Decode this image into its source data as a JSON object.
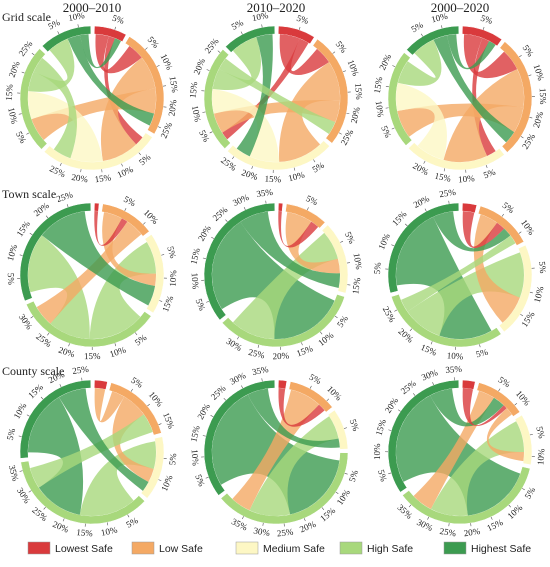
{
  "column_titles": [
    "2000–2010",
    "2010–2020",
    "2000–2020"
  ],
  "row_labels": [
    "Grid scale",
    "Town scale",
    "County scale"
  ],
  "categories": [
    "Lowest Safe",
    "Low Safe",
    "Medium Safe",
    "High Safe",
    "Highest Safe"
  ],
  "colors": [
    "#d93a3c",
    "#f4a964",
    "#fdf7c4",
    "#a8d87c",
    "#3c9b50"
  ],
  "ticks": [
    {
      "value": 5,
      "label": "5%"
    },
    {
      "value": 10,
      "label": "10%"
    },
    {
      "value": 15,
      "label": "15%"
    },
    {
      "value": 20,
      "label": "20%"
    },
    {
      "value": 25,
      "label": "25%"
    },
    {
      "value": 30,
      "label": "30%"
    },
    {
      "value": 35,
      "label": "35%"
    }
  ],
  "chart_data": [
    {
      "type": "chord",
      "segments": [
        8,
        27,
        30,
        27,
        13
      ],
      "chords": [
        {
          "source": 0,
          "target": 1,
          "value": 4
        },
        {
          "source": 0,
          "target": 2,
          "value": 2
        },
        {
          "source": 1,
          "target": 2,
          "value": 8
        },
        {
          "source": 1,
          "target": 3,
          "value": 6
        },
        {
          "source": 2,
          "target": 3,
          "value": 7
        },
        {
          "source": 3,
          "target": 4,
          "value": 5
        },
        {
          "source": 4,
          "target": 1,
          "value": 3
        },
        {
          "source": 3,
          "target": 2,
          "value": 4
        },
        {
          "source": 4,
          "target": 0,
          "value": 2
        }
      ]
    },
    {
      "type": "chord",
      "segments": [
        9,
        28,
        27,
        26,
        13
      ],
      "chords": [
        {
          "source": 0,
          "target": 1,
          "value": 4
        },
        {
          "source": 0,
          "target": 3,
          "value": 2
        },
        {
          "source": 1,
          "target": 2,
          "value": 9
        },
        {
          "source": 1,
          "target": 3,
          "value": 5
        },
        {
          "source": 2,
          "target": 3,
          "value": 6
        },
        {
          "source": 3,
          "target": 4,
          "value": 5
        },
        {
          "source": 4,
          "target": 2,
          "value": 3
        },
        {
          "source": 3,
          "target": 1,
          "value": 3
        }
      ]
    },
    {
      "type": "chord",
      "segments": [
        10,
        30,
        25,
        24,
        14
      ],
      "chords": [
        {
          "source": 0,
          "target": 1,
          "value": 5
        },
        {
          "source": 0,
          "target": 2,
          "value": 2
        },
        {
          "source": 1,
          "target": 2,
          "value": 9
        },
        {
          "source": 1,
          "target": 3,
          "value": 6
        },
        {
          "source": 2,
          "target": 3,
          "value": 6
        },
        {
          "source": 3,
          "target": 4,
          "value": 5
        },
        {
          "source": 4,
          "target": 1,
          "value": 3
        },
        {
          "source": 4,
          "target": 0,
          "value": 2
        }
      ]
    },
    {
      "type": "chord",
      "segments": [
        1,
        12,
        18,
        33,
        30
      ],
      "chords": [
        {
          "source": 3,
          "target": 2,
          "value": 8
        },
        {
          "source": 3,
          "target": 4,
          "value": 6
        },
        {
          "source": 1,
          "target": 2,
          "value": 3
        },
        {
          "source": 0,
          "target": 1,
          "value": 1
        },
        {
          "source": 1,
          "target": 3,
          "value": 3
        },
        {
          "source": 4,
          "target": 2,
          "value": 5
        }
      ]
    },
    {
      "type": "chord",
      "segments": [
        1,
        10,
        17,
        35,
        37
      ],
      "chords": [
        {
          "source": 4,
          "target": 3,
          "value": 10
        },
        {
          "source": 3,
          "target": 2,
          "value": 6
        },
        {
          "source": 1,
          "target": 2,
          "value": 3
        },
        {
          "source": 4,
          "target": 2,
          "value": 3
        },
        {
          "source": 0,
          "target": 1,
          "value": 1
        }
      ]
    },
    {
      "type": "chord",
      "segments": [
        3,
        12,
        20,
        28,
        27
      ],
      "chords": [
        {
          "source": 4,
          "target": 3,
          "value": 8
        },
        {
          "source": 3,
          "target": 2,
          "value": 6
        },
        {
          "source": 1,
          "target": 2,
          "value": 4
        },
        {
          "source": 0,
          "target": 1,
          "value": 2
        },
        {
          "source": 4,
          "target": 1,
          "value": 2
        },
        {
          "source": 3,
          "target": 1,
          "value": 2
        }
      ]
    },
    {
      "type": "chord",
      "segments": [
        3,
        17,
        15,
        37,
        27
      ],
      "chords": [
        {
          "source": 3,
          "target": 2,
          "value": 8
        },
        {
          "source": 4,
          "target": 3,
          "value": 7
        },
        {
          "source": 1,
          "target": 0,
          "value": 2
        },
        {
          "source": 1,
          "target": 2,
          "value": 4
        },
        {
          "source": 3,
          "target": 1,
          "value": 3
        },
        {
          "source": 4,
          "target": 2,
          "value": 3
        }
      ]
    },
    {
      "type": "chord",
      "segments": [
        2,
        12,
        10,
        42,
        38
      ],
      "chords": [
        {
          "source": 4,
          "target": 3,
          "value": 15
        },
        {
          "source": 3,
          "target": 2,
          "value": 8
        },
        {
          "source": 1,
          "target": 3,
          "value": 4
        },
        {
          "source": 4,
          "target": 2,
          "value": 3
        },
        {
          "source": 0,
          "target": 1,
          "value": 1
        }
      ]
    },
    {
      "type": "chord",
      "segments": [
        3,
        12,
        12,
        38,
        36
      ],
      "chords": [
        {
          "source": 4,
          "target": 3,
          "value": 13
        },
        {
          "source": 3,
          "target": 2,
          "value": 7
        },
        {
          "source": 1,
          "target": 3,
          "value": 4
        },
        {
          "source": 4,
          "target": 1,
          "value": 3
        },
        {
          "source": 0,
          "target": 1,
          "value": 1
        },
        {
          "source": 1,
          "target": 2,
          "value": 2
        }
      ]
    }
  ]
}
